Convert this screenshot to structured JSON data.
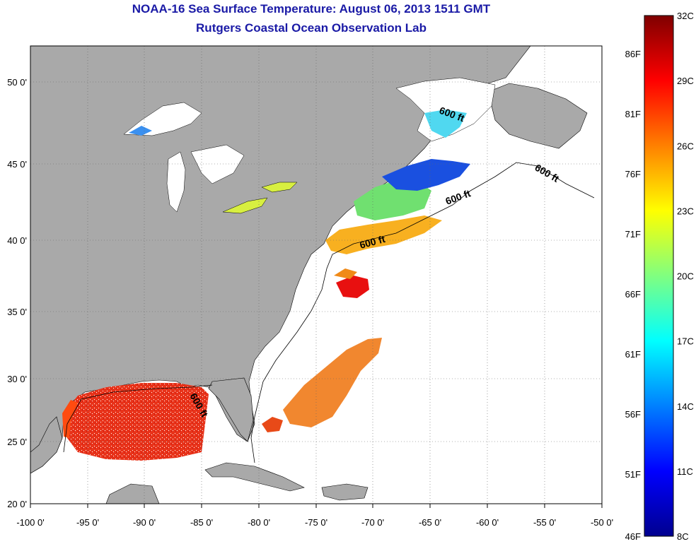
{
  "header": {
    "title": "NOAA-16 Sea Surface Temperature:  August 06, 2013 1511 GMT",
    "subtitle": "Rutgers Coastal Ocean Observation Lab"
  },
  "map": {
    "lon_labels": [
      "-100 0'",
      "-95 0'",
      "-90 0'",
      "-85 0'",
      "-80 0'",
      "-75 0'",
      "-70 0'",
      "-65 0'",
      "-60 0'",
      "-55 0'",
      "-50 0'"
    ],
    "lat_labels": [
      "50 0'",
      "45 0'",
      "40 0'",
      "35 0'",
      "30 0'",
      "25 0'",
      "20 0'"
    ],
    "contour_labels": [
      "600 ft",
      "600 ft",
      "600 ft",
      "600 ft",
      "600 ft"
    ],
    "colors": {
      "land": "#a9a9a9",
      "ocean": "#ffffff",
      "grid": "#666666"
    }
  },
  "colorbar": {
    "celsius_labels": [
      "32C",
      "29C",
      "26C",
      "23C",
      "20C",
      "17C",
      "14C",
      "11C",
      "8C"
    ],
    "fahrenheit_labels": [
      "86F",
      "81F",
      "76F",
      "71F",
      "66F",
      "61F",
      "56F",
      "51F",
      "46F"
    ],
    "stops": [
      "#7f0000",
      "#ff0000",
      "#ff8000",
      "#ffff00",
      "#80ff80",
      "#00ffff",
      "#0080ff",
      "#0000ff",
      "#00008f"
    ]
  }
}
